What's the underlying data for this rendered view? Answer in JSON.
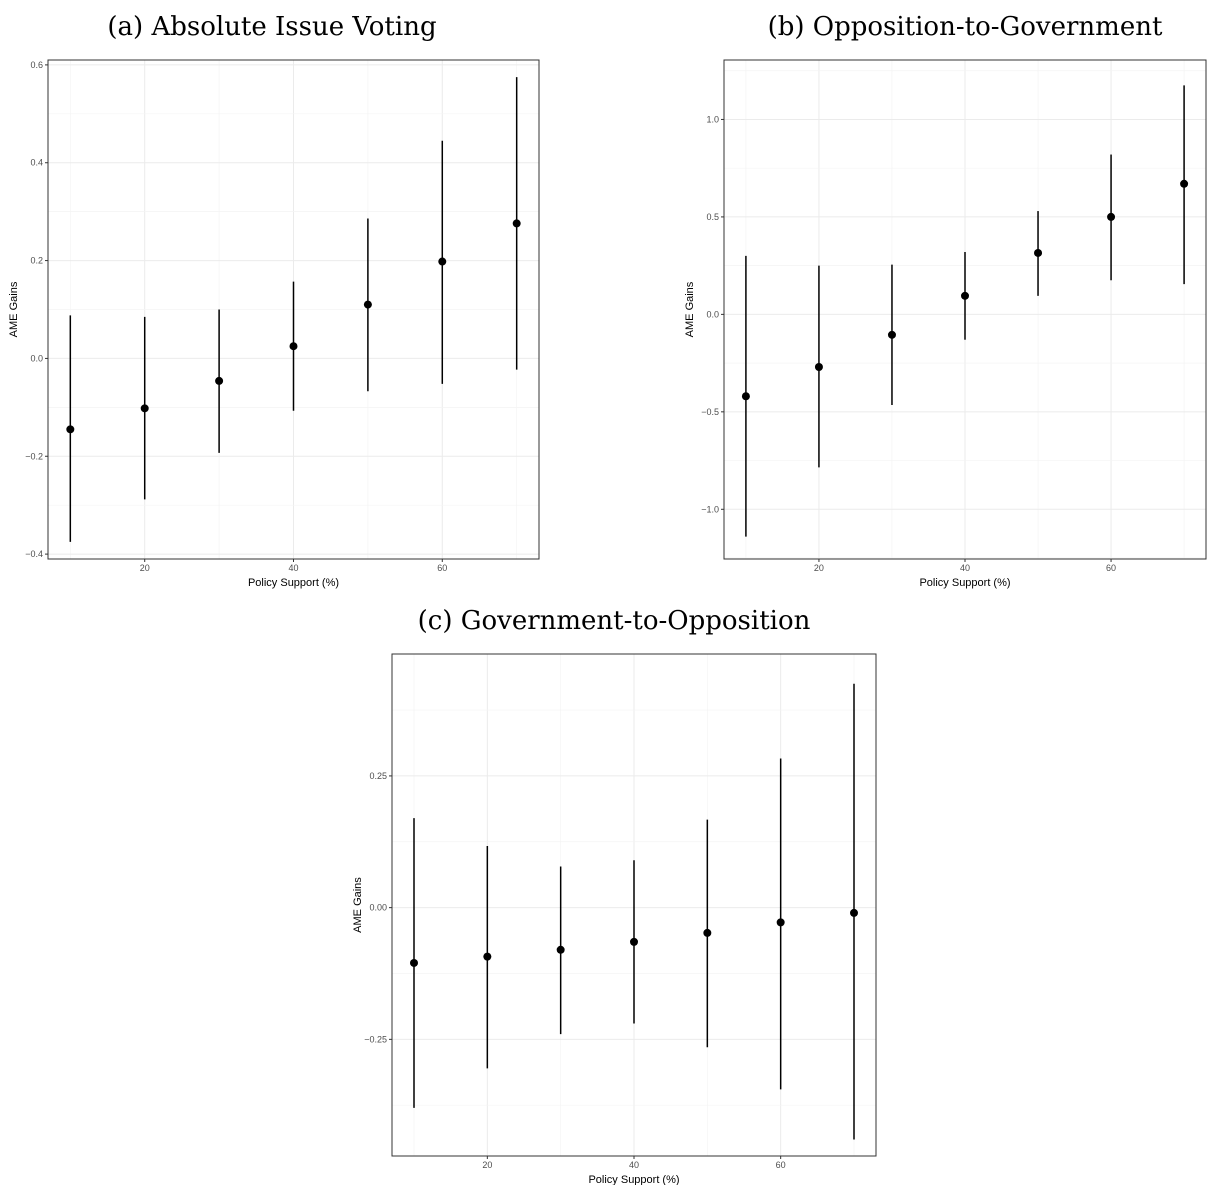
{
  "chart_data": [
    {
      "type": "scatter",
      "panel_title": "(a) Absolute Issue Voting",
      "xlabel": "Policy Support (%)",
      "ylabel": "AME Gains",
      "x": [
        10,
        20,
        30,
        40,
        50,
        60,
        70
      ],
      "y": [
        -0.145,
        -0.102,
        -0.046,
        0.025,
        0.11,
        0.198,
        0.276
      ],
      "lower": [
        -0.375,
        -0.288,
        -0.193,
        -0.107,
        -0.067,
        -0.052,
        -0.023
      ],
      "upper": [
        0.088,
        0.085,
        0.1,
        0.157,
        0.286,
        0.445,
        0.575
      ],
      "xticks": [
        "20",
        "40",
        "60"
      ],
      "yticks": [
        "-0.4",
        "-0.2",
        "0.0",
        "0.2",
        "0.4",
        "0.6"
      ],
      "grid": true
    },
    {
      "type": "scatter",
      "panel_title": "(b) Opposition-to-Government",
      "xlabel": "Policy Support (%)",
      "ylabel": "AME Gains",
      "x": [
        10,
        20,
        30,
        40,
        50,
        60,
        70
      ],
      "y": [
        -0.42,
        -0.27,
        -0.105,
        0.095,
        0.315,
        0.5,
        0.67
      ],
      "lower": [
        -1.14,
        -0.785,
        -0.465,
        -0.13,
        0.095,
        0.175,
        0.155
      ],
      "upper": [
        0.3,
        0.25,
        0.255,
        0.32,
        0.53,
        0.82,
        1.175
      ],
      "xticks": [
        "20",
        "40",
        "60"
      ],
      "yticks": [
        "-1.0",
        "-0.5",
        "0.0",
        "0.5",
        "1.0"
      ],
      "grid": true
    },
    {
      "type": "scatter",
      "panel_title": "(c) Government-to-Opposition",
      "xlabel": "Policy Support (%)",
      "ylabel": "AME Gains",
      "x": [
        10,
        20,
        30,
        40,
        50,
        60,
        70
      ],
      "y": [
        -0.105,
        -0.093,
        -0.08,
        -0.065,
        -0.048,
        -0.028,
        -0.01
      ],
      "lower": [
        -0.38,
        -0.305,
        -0.24,
        -0.22,
        -0.265,
        -0.345,
        -0.44
      ],
      "upper": [
        0.17,
        0.117,
        0.078,
        0.09,
        0.167,
        0.283,
        0.425
      ],
      "xticks": [
        "20",
        "40",
        "60"
      ],
      "yticks": [
        "-0.25",
        "0.00",
        "0.25"
      ],
      "grid": true
    }
  ]
}
